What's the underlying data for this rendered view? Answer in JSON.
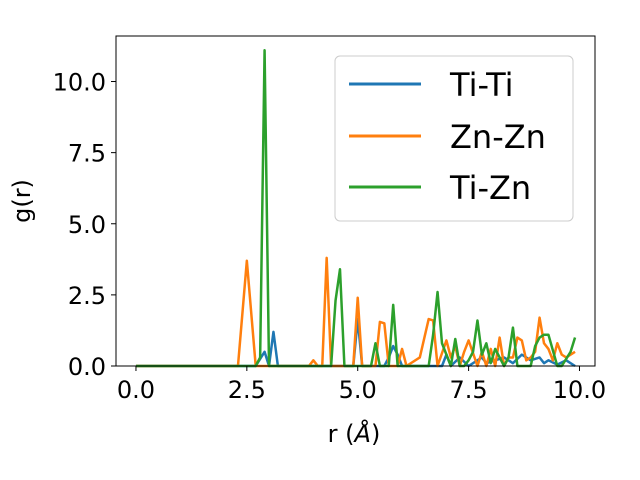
{
  "chart_data": {
    "type": "line",
    "xlabel_main": "r (",
    "xlabel_unit": "Å",
    "xlabel_close": ")",
    "ylabel": "g(r)",
    "xlim": [
      -0.45,
      10.35
    ],
    "ylim": [
      0,
      11.6
    ],
    "xticks": [
      0.0,
      2.5,
      5.0,
      7.5,
      10.0
    ],
    "xtick_labels": [
      "0.0",
      "2.5",
      "5.0",
      "7.5",
      "10.0"
    ],
    "yticks": [
      0.0,
      2.5,
      5.0,
      7.5,
      10.0
    ],
    "ytick_labels": [
      "0.0",
      "2.5",
      "5.0",
      "7.5",
      "10.0"
    ],
    "legend_position": "top-right",
    "series": [
      {
        "name": "Ti-Ti",
        "color": "#1f77b4",
        "x": [
          0.0,
          2.7,
          2.9,
          3.0,
          3.1,
          3.2,
          4.9,
          5.0,
          5.1,
          5.6,
          5.7,
          5.8,
          5.9,
          6.0,
          6.9,
          7.0,
          7.1,
          7.3,
          7.5,
          7.7,
          7.8,
          7.9,
          8.1,
          8.3,
          8.5,
          8.7,
          8.9,
          9.1,
          9.2,
          9.3,
          9.5,
          9.7,
          9.8,
          9.9
        ],
        "y": [
          0.0,
          0.0,
          0.5,
          0.0,
          1.2,
          0.0,
          0.0,
          1.65,
          0.0,
          0.0,
          0.3,
          0.7,
          0.4,
          0.0,
          0.0,
          0.4,
          0.0,
          0.3,
          0.0,
          0.2,
          0.3,
          0.1,
          0.2,
          0.3,
          0.1,
          0.4,
          0.2,
          0.3,
          0.1,
          0.2,
          0.05,
          0.2,
          0.1,
          0.0
        ]
      },
      {
        "name": "Zn-Zn",
        "color": "#ff7f0e",
        "x": [
          0.0,
          2.3,
          2.5,
          2.7,
          3.9,
          4.0,
          4.1,
          4.2,
          4.3,
          4.4,
          4.9,
          5.0,
          5.1,
          5.4,
          5.5,
          5.6,
          5.7,
          5.9,
          6.0,
          6.1,
          6.4,
          6.6,
          6.7,
          6.8,
          7.0,
          7.1,
          7.2,
          7.3,
          7.4,
          7.5,
          7.7,
          7.8,
          7.9,
          8.0,
          8.1,
          8.2,
          8.3,
          8.4,
          8.5,
          8.6,
          8.7,
          8.8,
          8.9,
          9.0,
          9.1,
          9.2,
          9.3,
          9.4,
          9.5,
          9.6,
          9.7,
          9.9
        ],
        "y": [
          0.0,
          0.0,
          3.7,
          0.0,
          0.0,
          0.2,
          0.0,
          0.0,
          3.8,
          0.0,
          0.0,
          2.4,
          0.0,
          0.0,
          1.55,
          1.5,
          0.0,
          0.0,
          0.6,
          0.0,
          0.3,
          1.65,
          1.6,
          0.0,
          0.9,
          0.3,
          0.7,
          0.0,
          0.5,
          0.9,
          0.0,
          0.5,
          0.0,
          0.6,
          0.0,
          1.0,
          0.0,
          0.3,
          0.3,
          1.0,
          0.9,
          0.2,
          0.3,
          0.5,
          1.7,
          0.8,
          0.6,
          0.2,
          0.8,
          0.4,
          0.3,
          0.5
        ]
      },
      {
        "name": "Ti-Zn",
        "color": "#2ca02c",
        "x": [
          0.0,
          2.7,
          2.8,
          2.9,
          3.0,
          4.4,
          4.5,
          4.6,
          4.7,
          5.2,
          5.3,
          5.4,
          5.5,
          5.7,
          5.8,
          5.9,
          6.3,
          6.6,
          6.7,
          6.8,
          6.9,
          7.1,
          7.2,
          7.3,
          7.4,
          7.5,
          7.6,
          7.7,
          7.8,
          7.9,
          8.0,
          8.1,
          8.3,
          8.4,
          8.5,
          8.6,
          8.7,
          8.9,
          9.0,
          9.1,
          9.2,
          9.3,
          9.5,
          9.6,
          9.8,
          9.9
        ],
        "y": [
          0.0,
          0.0,
          0.3,
          11.1,
          0.0,
          0.0,
          2.3,
          3.4,
          0.0,
          0.0,
          0.0,
          0.8,
          0.0,
          0.0,
          2.15,
          0.0,
          0.0,
          0.0,
          1.1,
          2.6,
          0.8,
          0.0,
          0.95,
          0.0,
          0.0,
          0.2,
          0.5,
          1.6,
          0.4,
          0.8,
          0.1,
          0.6,
          0.0,
          0.3,
          1.35,
          0.0,
          0.0,
          0.0,
          0.7,
          1.0,
          1.1,
          1.1,
          0.0,
          0.0,
          0.5,
          1.0
        ]
      }
    ]
  }
}
